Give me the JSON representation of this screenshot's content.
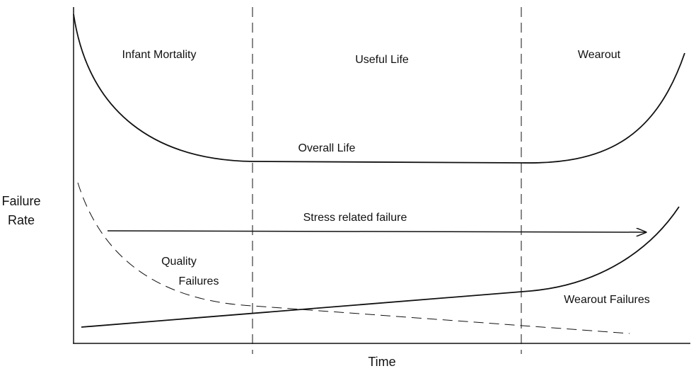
{
  "phases": [
    "Infant Mortality",
    "Useful Life",
    "Wearout"
  ],
  "curves": {
    "overall": "Overall Life",
    "stress": "Stress related failure",
    "quality": [
      "Quality",
      "Failures"
    ],
    "wearout": "Wearout Failures"
  },
  "y_axis_label": [
    "Failure",
    "Rate"
  ],
  "x_axis_label": "Time"
}
